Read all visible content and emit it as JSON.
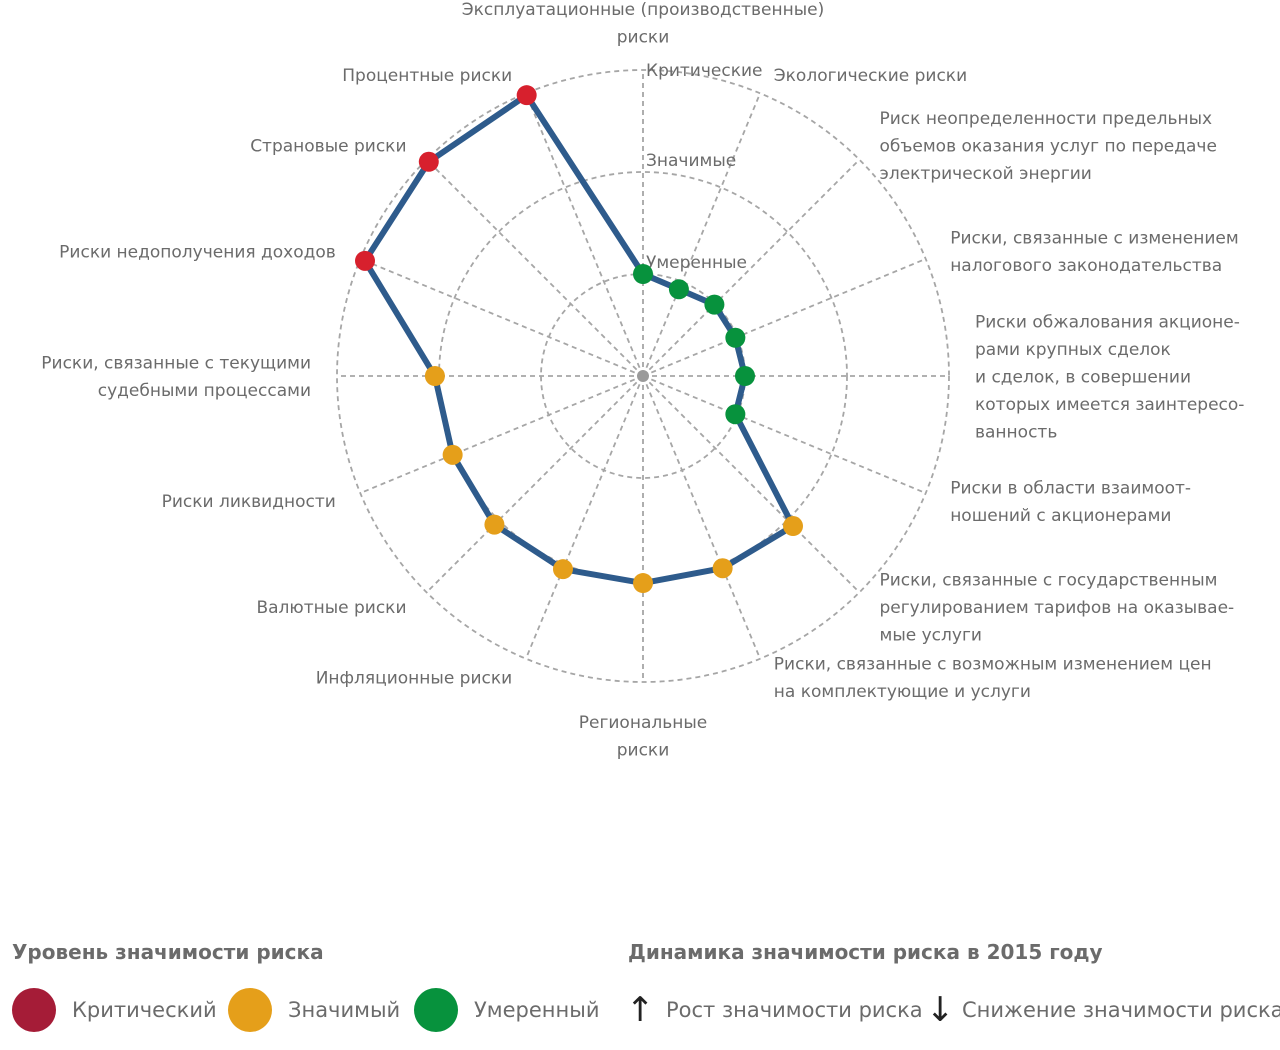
{
  "chart_data": {
    "type": "radar",
    "levels": [
      "Умеренные",
      "Значимые",
      "Критические"
    ],
    "colors": {
      "line": "#2e5b8c",
      "critical": "#d7202d",
      "significant": "#e59f1a",
      "moderate": "#07923d",
      "grid": "#a6a6a6"
    },
    "axes": [
      {
        "label": [
          "Эксплуатационные (производственные)",
          "риски"
        ],
        "value": 1.0,
        "level": "moderate"
      },
      {
        "label": [
          "Экологические риски"
        ],
        "value": 0.92,
        "level": "moderate"
      },
      {
        "label": [
          "Риск неопределенности предельных",
          "объемов оказания услуг по передаче",
          "электрической энергии"
        ],
        "value": 0.99,
        "level": "moderate"
      },
      {
        "label": [
          "Риски, связанные с изменением",
          "налогового законодательства"
        ],
        "value": 0.98,
        "level": "moderate"
      },
      {
        "label": [
          "Риски обжалования акционе-",
          "рами крупных сделок",
          "и сделок, в совершении",
          "которых имеется заинтересо-",
          "ванность"
        ],
        "value": 1.0,
        "level": "moderate"
      },
      {
        "label": [
          "Риски в области взаимоот-",
          "ношений с акционерами"
        ],
        "value": 0.98,
        "level": "moderate"
      },
      {
        "label": [
          "Риски, связанные с государственным",
          "регулированием тарифов на оказывае-",
          "мые услуги"
        ],
        "value": 2.08,
        "level": "significant"
      },
      {
        "label": [
          "Риски, связанные с возможным изменением цен",
          "на комплектующие и услуги"
        ],
        "value": 2.04,
        "level": "significant"
      },
      {
        "label": [
          "Региональные",
          "риски"
        ],
        "value": 2.03,
        "level": "significant"
      },
      {
        "label": [
          "Инфляционные риски"
        ],
        "value": 2.05,
        "level": "significant"
      },
      {
        "label": [
          "Валютные риски"
        ],
        "value": 2.06,
        "level": "significant"
      },
      {
        "label": [
          "Риски ликвидности"
        ],
        "value": 2.02,
        "level": "significant"
      },
      {
        "label": [
          "Риски, связанные с текущими",
          "судебными процессами"
        ],
        "value": 2.04,
        "level": "significant"
      },
      {
        "label": [
          "Риски недополучения доходов"
        ],
        "value": 2.95,
        "level": "critical"
      },
      {
        "label": [
          "Страновые риски"
        ],
        "value": 2.97,
        "level": "critical"
      },
      {
        "label": [
          "Процентные риски"
        ],
        "value": 2.98,
        "level": "critical"
      }
    ]
  },
  "legend": {
    "level_title": "Уровень значимости риска",
    "dynamics_title": "Динамика значимости риска в 2015 году",
    "items": [
      {
        "label": "Критический",
        "color": "#a51c37"
      },
      {
        "label": "Значимый",
        "color": "#e59f1a"
      },
      {
        "label": "Умеренный",
        "color": "#07923d"
      }
    ],
    "up_label": "Рост значимости риска",
    "down_label": "Снижение значимости риска",
    "up_arrow": "↑",
    "down_arrow": "↓"
  }
}
